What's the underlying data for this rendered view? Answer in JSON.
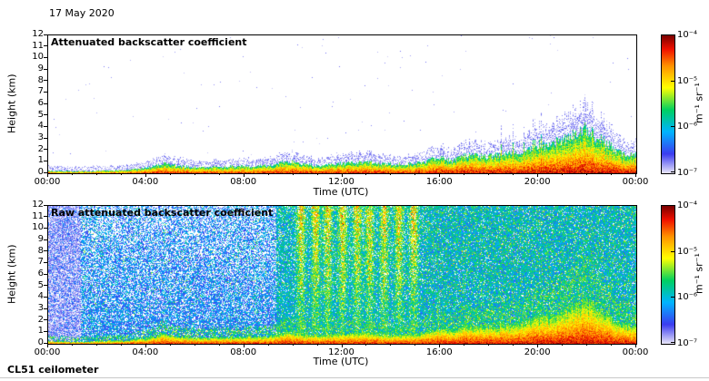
{
  "header": {
    "date": "17 May 2020"
  },
  "footer": {
    "instrument": "CL51 ceilometer"
  },
  "panels": [
    {
      "title": "Attenuated backscatter coefficient",
      "xlabel": "Time (UTC)",
      "ylabel": "Height (km)",
      "xticks": [
        "00:00",
        "04:00",
        "08:00",
        "12:00",
        "16:00",
        "20:00",
        "00:00"
      ],
      "yticks": [
        "0",
        "1",
        "2",
        "3",
        "4",
        "5",
        "6",
        "7",
        "8",
        "9",
        "10",
        "11",
        "12"
      ]
    },
    {
      "title": "Raw attenuated backscatter coefficient",
      "xlabel": "Time (UTC)",
      "ylabel": "Height (km)",
      "xticks": [
        "00:00",
        "04:00",
        "08:00",
        "12:00",
        "16:00",
        "20:00",
        "00:00"
      ],
      "yticks": [
        "0",
        "1",
        "2",
        "3",
        "4",
        "5",
        "6",
        "7",
        "8",
        "9",
        "10",
        "11",
        "12"
      ]
    }
  ],
  "colorbar": {
    "tick_labels": [
      "10⁻⁴",
      "10⁻⁵",
      "10⁻⁶",
      "10⁻⁷"
    ],
    "unit": "m⁻¹ sr⁻¹",
    "scale": "log",
    "min": 1e-07,
    "max": 0.0001,
    "colormap": {
      "positions": [
        0,
        0.14,
        0.3,
        0.46,
        0.62,
        0.78,
        0.9,
        1.0
      ],
      "colors": [
        "#e8e6f8",
        "#3c3cf0",
        "#00b4ff",
        "#00d060",
        "#ffff00",
        "#ff9000",
        "#f01000",
        "#7a0000"
      ]
    }
  },
  "chart_data": [
    {
      "type": "heatmap",
      "title": "Attenuated backscatter coefficient",
      "date": "17 May 2020",
      "xlabel": "Time (UTC)",
      "ylabel": "Height (km)",
      "x_range_hours": [
        0,
        24
      ],
      "x_ticks": [
        "00:00",
        "04:00",
        "08:00",
        "12:00",
        "16:00",
        "20:00",
        "00:00"
      ],
      "ylim": [
        0,
        12
      ],
      "y_ticks": [
        0,
        1,
        2,
        3,
        4,
        5,
        6,
        7,
        8,
        9,
        10,
        11,
        12
      ],
      "colorbar": {
        "unit": "m⁻¹ sr⁻¹",
        "scale": "log",
        "min": 1e-07,
        "max": 0.0001,
        "tick_labels": [
          "10⁻⁴",
          "10⁻⁵",
          "10⁻⁶",
          "10⁻⁷"
        ]
      },
      "features": {
        "aerosol_layer_top_km": {
          "hours": [
            0,
            1,
            2,
            3,
            4,
            4.7,
            5.2,
            6,
            7,
            8,
            9,
            9.8,
            10.5,
            11,
            12,
            13,
            14,
            15,
            16,
            16.5,
            17,
            18,
            19,
            20,
            20.7,
            21.3,
            21.8,
            22.3,
            22.8,
            23.3,
            24
          ],
          "values": [
            0.25,
            0.2,
            0.25,
            0.3,
            0.5,
            0.9,
            0.7,
            0.55,
            0.6,
            0.65,
            0.7,
            1.1,
            0.8,
            0.7,
            0.9,
            1.0,
            0.8,
            0.9,
            1.4,
            1.1,
            1.6,
            1.5,
            1.8,
            2.3,
            2.6,
            3.2,
            3.9,
            3.3,
            2.6,
            1.8,
            1.6
          ]
        },
        "surface_signal": "strong backscatter (10⁻⁵–10⁻⁴ m⁻¹ sr⁻¹) confined below ~0.5–2 km all day, deepening to ~4 km around 22:00",
        "cloud_peak": {
          "hour": 22,
          "top_km": 3.9
        },
        "free_troposphere": "clear (white, below 10⁻⁷) above the aerosol layer"
      }
    },
    {
      "type": "heatmap",
      "title": "Raw attenuated backscatter coefficient",
      "xlabel": "Time (UTC)",
      "ylabel": "Height (km)",
      "x_range_hours": [
        0,
        24
      ],
      "x_ticks": [
        "00:00",
        "04:00",
        "08:00",
        "12:00",
        "16:00",
        "20:00",
        "00:00"
      ],
      "ylim": [
        0,
        12
      ],
      "y_ticks": [
        0,
        1,
        2,
        3,
        4,
        5,
        6,
        7,
        8,
        9,
        10,
        11,
        12
      ],
      "colorbar": {
        "unit": "m⁻¹ sr⁻¹",
        "scale": "log",
        "min": 1e-07,
        "max": 0.0001,
        "tick_labels": [
          "10⁻⁴",
          "10⁻⁵",
          "10⁻⁶",
          "10⁻⁷"
        ]
      },
      "features": {
        "background_noise": "blue speckle noise at all heights before ~09:00, turning green/orange (solar background) from ~10:00, dense green speckle after ~15:00",
        "solar_noise_streaks_hours": [
          10.3,
          10.9,
          11.4,
          12.0,
          12.6,
          13.1,
          13.7,
          14.3,
          14.9
        ],
        "pale_column_end_hour": 1.3,
        "noise_regime_change_hours": [
          9.3,
          15.3
        ],
        "surface_signal": "same strong near-surface aerosol/cloud layer as top panel, with green fuzz up to ~2× layer depth"
      }
    }
  ]
}
